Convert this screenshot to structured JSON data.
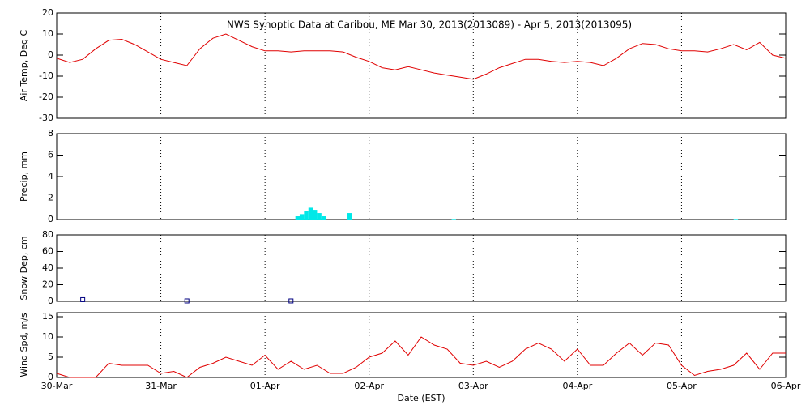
{
  "chart_data": [
    {
      "type": "line",
      "title": "NWS Synoptic Data at Caribou, ME   Mar 30, 2013(2013089) - Apr  5, 2013(2013095)",
      "ylabel": "Air Temp, Deg C",
      "color": "#e00000",
      "x": [
        0,
        0.125,
        0.25,
        0.375,
        0.5,
        0.625,
        0.75,
        0.875,
        1,
        1.125,
        1.25,
        1.375,
        1.5,
        1.625,
        1.75,
        1.875,
        2,
        2.125,
        2.25,
        2.375,
        2.5,
        2.625,
        2.75,
        2.875,
        3,
        3.125,
        3.25,
        3.375,
        3.5,
        3.625,
        3.75,
        3.875,
        4,
        4.125,
        4.25,
        4.375,
        4.5,
        4.625,
        4.75,
        4.875,
        5,
        5.125,
        5.25,
        5.375,
        5.5,
        5.625,
        5.75,
        5.875,
        6,
        6.125,
        6.25,
        6.375,
        6.5,
        6.625,
        6.75,
        6.875,
        7
      ],
      "values": [
        -1.5,
        -3.5,
        -2,
        3,
        7,
        7.5,
        5,
        1.5,
        -2,
        -3.5,
        -5,
        3,
        8,
        10,
        7,
        4,
        2,
        2,
        1.5,
        2,
        2,
        2,
        1.5,
        -1,
        -3,
        -6,
        -7,
        -5.5,
        -7,
        -8.5,
        -9.5,
        -10.5,
        -11.5,
        -9,
        -6,
        -4,
        -2,
        -2,
        -3,
        -3.5,
        -3,
        -3.5,
        -5,
        -1.5,
        3,
        5.5,
        5,
        3,
        2,
        2,
        1.5,
        3,
        5,
        2.5,
        6,
        0,
        -1.5
      ],
      "xlim": [
        0,
        7
      ],
      "xticks": [
        0,
        1,
        2,
        3,
        4,
        5,
        6,
        7
      ],
      "ylim": [
        -30,
        20
      ],
      "yticks": [
        -30,
        -20,
        -10,
        0,
        10,
        20
      ]
    },
    {
      "type": "bar",
      "ylabel": "Precip, mm",
      "color": "#00e8e8",
      "x": [
        2.292,
        2.333,
        2.375,
        2.417,
        2.458,
        2.5,
        2.542,
        2.792,
        3.792,
        6.5
      ],
      "values": [
        0.3,
        0.5,
        0.8,
        1.1,
        0.9,
        0.6,
        0.3,
        0.6,
        0.05,
        0.05
      ],
      "xlim": [
        0,
        7
      ],
      "xticks": [
        0,
        1,
        2,
        3,
        4,
        5,
        6,
        7
      ],
      "ylim": [
        0,
        8
      ],
      "yticks": [
        0,
        2,
        4,
        6,
        8
      ]
    },
    {
      "type": "scatter",
      "ylabel": "Snow Dep, cm",
      "color": "#000080",
      "x": [
        0.25,
        1.25,
        2.25
      ],
      "values": [
        2,
        0.5,
        0.5
      ],
      "xlim": [
        0,
        7
      ],
      "xticks": [
        0,
        1,
        2,
        3,
        4,
        5,
        6,
        7
      ],
      "ylim": [
        0,
        80
      ],
      "yticks": [
        0,
        20,
        40,
        60,
        80
      ]
    },
    {
      "type": "line",
      "ylabel": "Wind Spd, m/s",
      "xlabel": "Date (EST)",
      "color": "#e00000",
      "x": [
        0,
        0.125,
        0.25,
        0.375,
        0.5,
        0.625,
        0.75,
        0.875,
        1,
        1.125,
        1.25,
        1.375,
        1.5,
        1.625,
        1.75,
        1.875,
        2,
        2.125,
        2.25,
        2.375,
        2.5,
        2.625,
        2.75,
        2.875,
        3,
        3.125,
        3.25,
        3.375,
        3.5,
        3.625,
        3.75,
        3.875,
        4,
        4.125,
        4.25,
        4.375,
        4.5,
        4.625,
        4.75,
        4.875,
        5,
        5.125,
        5.25,
        5.375,
        5.5,
        5.625,
        5.75,
        5.875,
        6,
        6.125,
        6.25,
        6.375,
        6.5,
        6.625,
        6.75,
        6.875,
        7
      ],
      "values": [
        1,
        0,
        0,
        0,
        3.5,
        3,
        3,
        3,
        1,
        1.5,
        0,
        2.5,
        3.5,
        5,
        4,
        3,
        5.5,
        2,
        4,
        2,
        3,
        1,
        1,
        2.5,
        5,
        6,
        9,
        5.5,
        10,
        8,
        7,
        3.5,
        3,
        4,
        2.5,
        4,
        7,
        8.5,
        7,
        4,
        7,
        3,
        3,
        6,
        8.5,
        5.5,
        8.5,
        8,
        3,
        0.5,
        1.5,
        2,
        3,
        6,
        2,
        6,
        6
      ],
      "xlim": [
        0,
        7
      ],
      "xticks": [
        {
          "value": 0,
          "label": "30-Mar"
        },
        {
          "value": 1,
          "label": "31-Mar"
        },
        {
          "value": 2,
          "label": "01-Apr"
        },
        {
          "value": 3,
          "label": "02-Apr"
        },
        {
          "value": 4,
          "label": "03-Apr"
        },
        {
          "value": 5,
          "label": "04-Apr"
        },
        {
          "value": 6,
          "label": "05-Apr"
        },
        {
          "value": 7,
          "label": "06-Apr"
        }
      ],
      "ylim": [
        0,
        16
      ],
      "yticks": [
        0,
        5,
        10,
        15
      ]
    }
  ]
}
